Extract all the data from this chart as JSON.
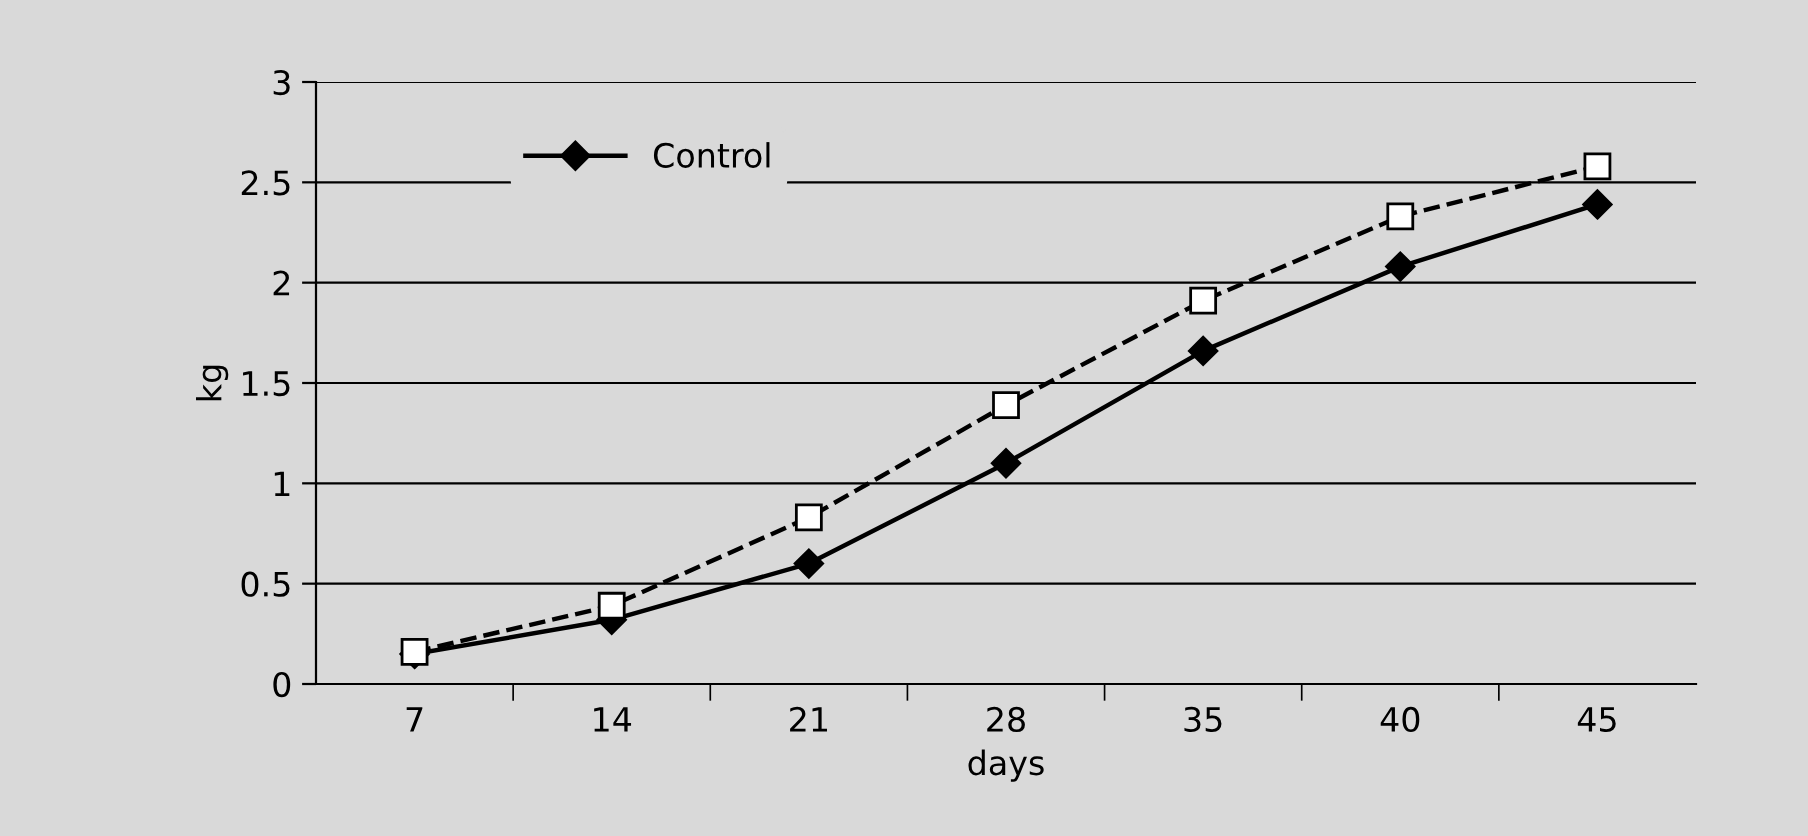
{
  "chart_data": {
    "type": "line",
    "xlabel": "days",
    "ylabel": "kg",
    "categories": [
      "7",
      "14",
      "21",
      "28",
      "35",
      "40",
      "45"
    ],
    "series": [
      {
        "name": "Control",
        "color": "#000000",
        "values": [
          0.15,
          0.32,
          0.6,
          1.1,
          1.66,
          2.08,
          2.39
        ],
        "marker": "diamond",
        "line_style": "solid"
      },
      {
        "color": "#000000",
        "values": [
          0.16,
          0.39,
          0.83,
          1.39,
          1.91,
          2.33,
          2.58
        ],
        "marker": "square",
        "line_style": "dashed"
      }
    ],
    "ylim": [
      0,
      3
    ],
    "yticks": [
      0,
      0.5,
      1,
      1.5,
      2,
      2.5,
      3
    ],
    "grid": "y",
    "legend": "top left"
  }
}
